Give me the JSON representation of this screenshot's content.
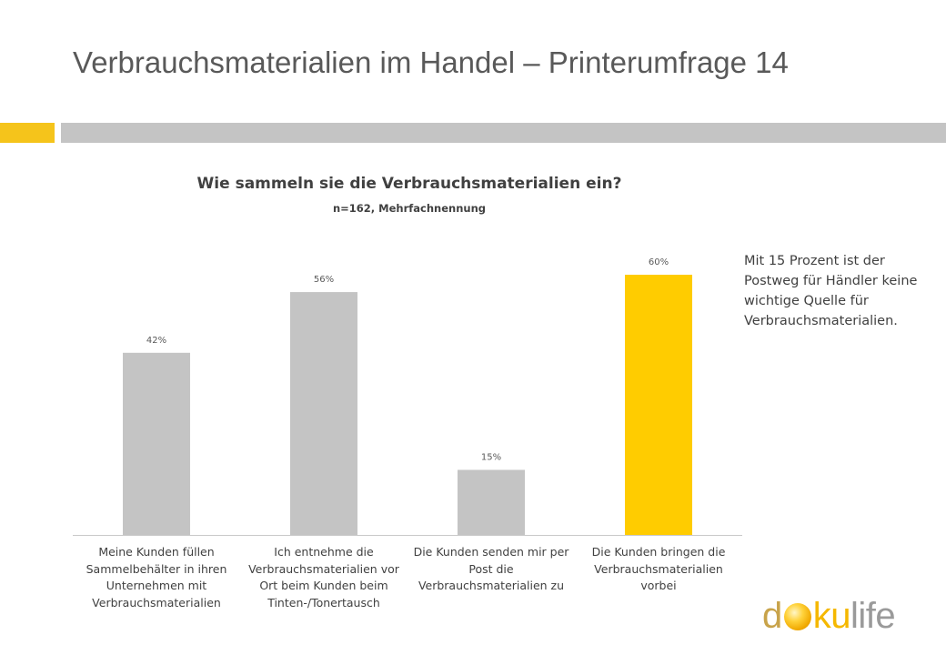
{
  "slide": {
    "title": "Verbrauchsmaterialien im Handel – Printerumfrage 14"
  },
  "note": "Mit 15 Prozent ist der Postweg für Händler keine wichtige Quelle für Verbrauchsmaterialien.",
  "logo": {
    "d": "d",
    "ku": "ku",
    "life": "life"
  },
  "colors": {
    "bar_default": "#c4c4c4",
    "bar_highlight": "#ffcc00",
    "accent": "#f5c41b"
  },
  "chart_data": {
    "type": "bar",
    "title": "Wie sammeln sie die Verbrauchsmaterialien ein?",
    "subtitle": "n=162, Mehrfachnennung",
    "categories": [
      "Meine Kunden füllen Sammelbehälter in ihren Unternehmen mit Verbrauchsmaterialien",
      "Ich entnehme die Verbrauchsmaterialien vor Ort beim Kunden beim Tinten-/Tonertausch",
      "Die Kunden senden mir per Post die Verbrauchsmaterialien zu",
      "Die Kunden bringen die Verbrauchsmaterialien vorbei"
    ],
    "values": [
      42,
      56,
      15,
      60
    ],
    "value_labels": [
      "42%",
      "56%",
      "15%",
      "60%"
    ],
    "highlight_index": 3,
    "ylim": [
      0,
      60
    ],
    "grid": false
  }
}
